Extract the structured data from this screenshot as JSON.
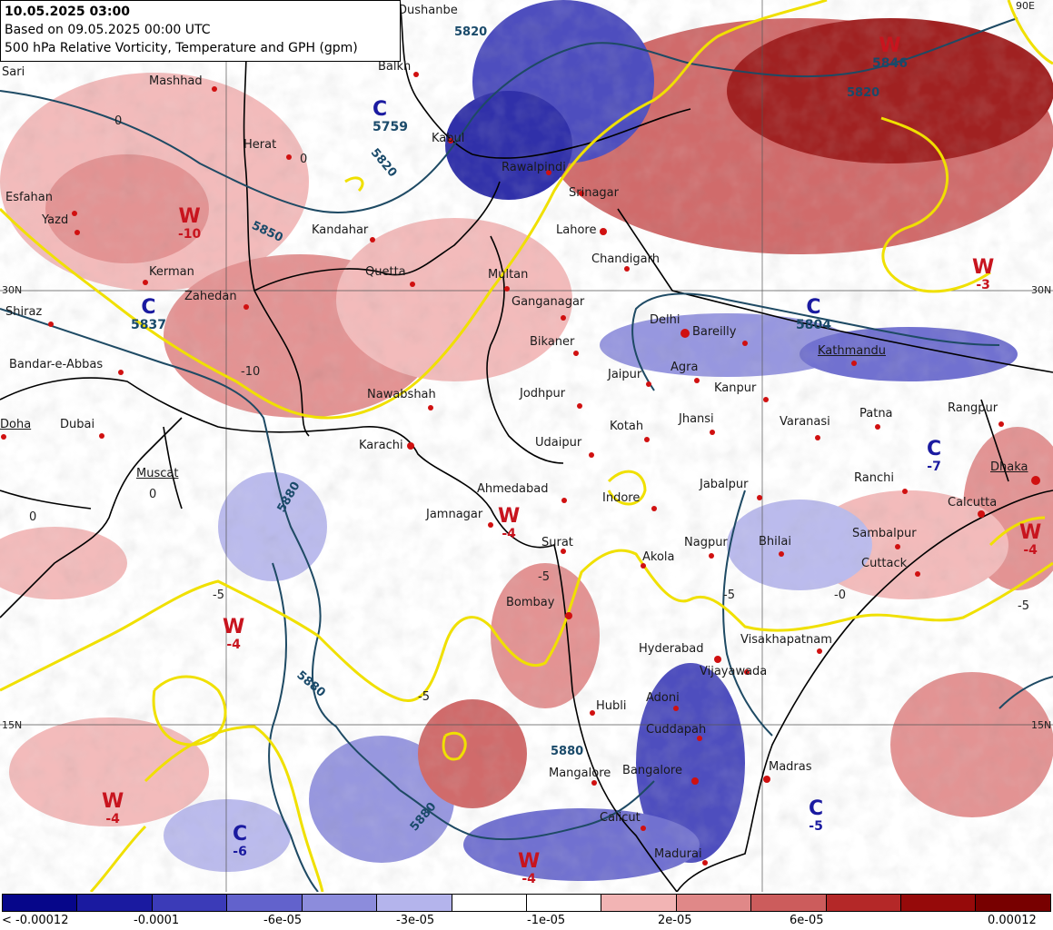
{
  "header": {
    "valid_time": "10.05.2025 03:00",
    "based_on": "Based on 09.05.2025 00:00 UTC",
    "description": "500 hPa Relative Vorticity, Temperature and GPH (gpm)"
  },
  "cities": [
    "Dushanbe",
    "Sari",
    "Mashhad",
    "Balkh",
    "Kabul",
    "Rawalpindi",
    "Srinagar",
    "Herat",
    "Esfahan",
    "Yazd",
    "Kandahar",
    "Lahore",
    "Chandigarh",
    "Quetta",
    "Multan",
    "Kerman",
    "Zahedan",
    "Ganganagar",
    "Shiraz",
    "Delhi",
    "Bareilly",
    "Bikaner",
    "Kathmandu",
    "Bandar-e-Abbas",
    "Jaipur",
    "Agra",
    "Nawabshah",
    "Jodhpur",
    "Kanpur",
    "Doha",
    "Dubai",
    "Jhansi",
    "Varanasi",
    "Patna",
    "Rangpur",
    "Kotah",
    "Karachi",
    "Udaipur",
    "Ranchi",
    "Dhaka",
    "Muscat",
    "Ahmedabad",
    "Indore",
    "Jabalpur",
    "Calcutta",
    "Jamnagar",
    "Surat",
    "Akola",
    "Nagpur",
    "Bhilai",
    "Sambalpur",
    "Cuttack",
    "Bombay",
    "Hyderabad",
    "Visakhapatnam",
    "Vijayawada",
    "Adoni",
    "Hubli",
    "Cuddapah",
    "Mangalore",
    "Bangalore",
    "Madras",
    "Calicut",
    "Madurai"
  ],
  "grid_labels": [
    "30N",
    "15N",
    "90E"
  ],
  "systems": [
    {
      "type": "W",
      "value": "-10"
    },
    {
      "type": "C",
      "value": "5759"
    },
    {
      "type": "C",
      "value": "5837"
    },
    {
      "type": "W",
      "value": "5846"
    },
    {
      "type": "C",
      "value": "5804"
    },
    {
      "type": "W",
      "value": "-3"
    },
    {
      "type": "C",
      "value": "-7"
    },
    {
      "type": "W",
      "value": "-4"
    },
    {
      "type": "W",
      "value": "-4"
    },
    {
      "type": "W",
      "value": "-4"
    },
    {
      "type": "W",
      "value": "-4"
    },
    {
      "type": "C",
      "value": "-6"
    },
    {
      "type": "W",
      "value": "-4"
    },
    {
      "type": "C",
      "value": "-5"
    }
  ],
  "gph_labels": [
    "5820",
    "5820",
    "5820",
    "5850",
    "5880",
    "5880",
    "5880",
    "5880"
  ],
  "temperature_labels": [
    "0",
    "0",
    "-10",
    "-5",
    "-5",
    "-5",
    "-5",
    "-5",
    "0",
    "0",
    "-0"
  ],
  "legend": {
    "colors": [
      "#06068a",
      "#1a1aa0",
      "#3b3bb8",
      "#6262cc",
      "#8c8cdc",
      "#b4b4ec",
      "#ffffff",
      "#ffffff",
      "#f2b4b4",
      "#e08888",
      "#cc5c5c",
      "#b42828",
      "#960a0a",
      "#780000"
    ],
    "labels": [
      "< -0.00012",
      "-0.0001",
      "-6e-05",
      "-3e-05",
      "-1e-05",
      "2e-05",
      "6e-05",
      "0.00012"
    ]
  },
  "colors": {
    "temperature_contour": "#f0e000",
    "gph_contour": "#1e4a64",
    "coast": "#000000",
    "warm_label": "#c8141e",
    "cold_label": "#1a1aa0"
  }
}
